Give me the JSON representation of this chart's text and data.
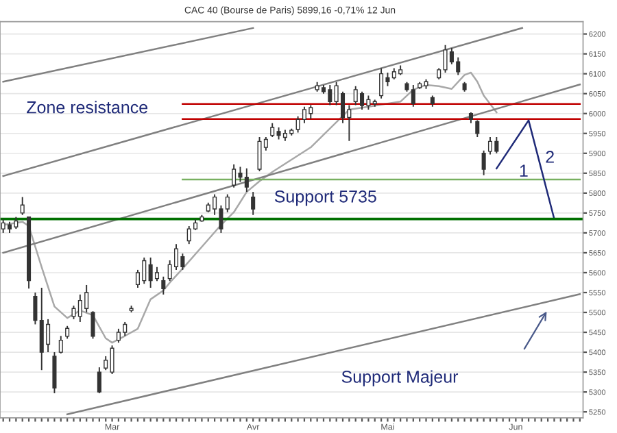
{
  "chart_data": {
    "type": "candlestick",
    "title": "CAC 40 (Bourse de Paris) 5899,16 -0,71% 12 Jun",
    "categories": [
      null,
      null,
      null,
      null,
      null,
      null,
      null,
      null,
      null,
      null,
      null,
      null,
      null,
      null,
      null,
      null,
      null,
      "Mar",
      null,
      null,
      null,
      null,
      null,
      null,
      null,
      null,
      null,
      null,
      null,
      null,
      null,
      null,
      null,
      null,
      null,
      null,
      null,
      null,
      null,
      "Avr",
      null,
      null,
      null,
      null,
      null,
      null,
      null,
      null,
      null,
      null,
      null,
      null,
      null,
      null,
      null,
      null,
      null,
      null,
      null,
      null,
      "Mai",
      null,
      null,
      null,
      null,
      null,
      null,
      null,
      null,
      null,
      null,
      null,
      null,
      null,
      null,
      null,
      null,
      null,
      null,
      null,
      "Jun",
      null,
      null,
      null,
      null,
      null,
      null,
      null,
      null,
      null,
      null
    ],
    "ohlc": [
      [
        5710,
        5735,
        5700,
        5725
      ],
      [
        5720,
        5728,
        5700,
        5710
      ],
      [
        5715,
        5740,
        5710,
        5730
      ],
      [
        5750,
        5790,
        5745,
        5770
      ],
      [
        5740,
        5740,
        5560,
        5580
      ],
      [
        5540,
        5550,
        5470,
        5480
      ],
      [
        5480,
        5562,
        5355,
        5400
      ],
      [
        5420,
        5483,
        5400,
        5470
      ],
      [
        5390,
        5400,
        5297,
        5310
      ],
      [
        5400,
        5441,
        5397,
        5430
      ],
      [
        5440,
        5466,
        5434,
        5460
      ],
      [
        5490,
        5517,
        5483,
        5510
      ],
      [
        5490,
        5545,
        5476,
        5530
      ],
      [
        5510,
        5569,
        5500,
        5550
      ],
      [
        5500,
        5503,
        5434,
        5440
      ],
      [
        5350,
        5362,
        5297,
        5300
      ],
      [
        5360,
        5390,
        5355,
        5380
      ],
      [
        5350,
        5417,
        5345,
        5410
      ],
      [
        5430,
        5459,
        5424,
        5450
      ],
      [
        5450,
        5476,
        5441,
        5470
      ],
      [
        5505,
        5517,
        5500,
        5510
      ],
      [
        5570,
        5607,
        5562,
        5600
      ],
      [
        5580,
        5638,
        5572,
        5630
      ],
      [
        5620,
        5638,
        5562,
        5580
      ],
      [
        5585,
        5614,
        5579,
        5600
      ],
      [
        5580,
        5590,
        5545,
        5560
      ],
      [
        5585,
        5631,
        5579,
        5620
      ],
      [
        5615,
        5672,
        5607,
        5660
      ],
      [
        5640,
        5648,
        5607,
        5615
      ],
      [
        5680,
        5717,
        5672,
        5710
      ],
      [
        5710,
        5734,
        5707,
        5725
      ],
      [
        5730,
        5745,
        5728,
        5740
      ],
      [
        5755,
        5776,
        5752,
        5770
      ],
      [
        5760,
        5797,
        5745,
        5790
      ],
      [
        5760,
        5769,
        5700,
        5710
      ],
      [
        5760,
        5797,
        5752,
        5790
      ],
      [
        5820,
        5872,
        5814,
        5860
      ],
      [
        5850,
        5866,
        5828,
        5840
      ],
      [
        5840,
        5862,
        5803,
        5815
      ],
      [
        5790,
        5803,
        5745,
        5760
      ],
      [
        5860,
        5941,
        5855,
        5930
      ],
      [
        5915,
        5941,
        5907,
        5935
      ],
      [
        5945,
        5976,
        5941,
        5965
      ],
      [
        5955,
        5965,
        5935,
        5945
      ],
      [
        5940,
        5959,
        5931,
        5950
      ],
      [
        5950,
        5962,
        5945,
        5958
      ],
      [
        5960,
        5993,
        5952,
        5985
      ],
      [
        5985,
        6017,
        5976,
        6010
      ],
      [
        6000,
        6021,
        5986,
        6015
      ],
      [
        6060,
        6079,
        6055,
        6070
      ],
      [
        6065,
        6072,
        6050,
        6055
      ],
      [
        6060,
        6072,
        6021,
        6030
      ],
      [
        6030,
        6079,
        6021,
        6070
      ],
      [
        6050,
        6055,
        5976,
        5990
      ],
      [
        5990,
        6021,
        5931,
        6010
      ],
      [
        6030,
        6069,
        6021,
        6060
      ],
      [
        6050,
        6055,
        6010,
        6020
      ],
      [
        6020,
        6045,
        6010,
        6035
      ],
      [
        6025,
        6035,
        6017,
        6030
      ],
      [
        6045,
        6114,
        6038,
        6100
      ],
      [
        6090,
        6103,
        6069,
        6080
      ],
      [
        6090,
        6114,
        6086,
        6105
      ],
      [
        6100,
        6121,
        6097,
        6110
      ],
      [
        6075,
        6079,
        6055,
        6060
      ],
      [
        6060,
        6072,
        6017,
        6025
      ],
      [
        6065,
        6079,
        6062,
        6075
      ],
      [
        6070,
        6086,
        6062,
        6080
      ],
      [
        6040,
        6045,
        6017,
        6025
      ],
      [
        6090,
        6114,
        6086,
        6110
      ],
      [
        6110,
        6172,
        6103,
        6160
      ],
      [
        6155,
        6165,
        6124,
        6130
      ],
      [
        6130,
        6141,
        6097,
        6105
      ],
      [
        6075,
        6079,
        6055,
        6060
      ],
      [
        6000,
        6003,
        5976,
        5985
      ],
      [
        5980,
        5983,
        5941,
        5950
      ],
      [
        5900,
        5907,
        5845,
        5860
      ],
      [
        5905,
        5941,
        5897,
        5930
      ],
      [
        5930,
        5941,
        5900,
        5905
      ],
      null,
      null,
      null,
      null,
      null,
      null,
      null,
      null,
      null,
      null,
      null,
      null,
      null
    ],
    "color": "#333333",
    "series": [
      {
        "type": "line",
        "color": "#a8a8a8",
        "values": [
          5720,
          null,
          null,
          5728,
          5717,
          null,
          5614,
          null,
          5515,
          null,
          5486,
          null,
          5505,
          null,
          5493,
          null,
          5435,
          5424,
          null,
          5441,
          null,
          5459,
          null,
          5533,
          null,
          5555,
          5575,
          null,
          5610,
          null,
          null,
          5665,
          null,
          null,
          5720,
          null,
          5752,
          null,
          5803,
          null,
          5830,
          null,
          5853,
          null,
          null,
          null,
          null,
          null,
          5915,
          null,
          null,
          null,
          null,
          null,
          6010,
          null,
          null,
          6017,
          null,
          null,
          null,
          null,
          6030,
          null,
          6060,
          null,
          6072,
          null,
          6069,
          null,
          6062,
          null,
          6097,
          6103,
          6080,
          6045,
          null,
          6003,
          null,
          null,
          null,
          null,
          null,
          null,
          null,
          null,
          null,
          null,
          null,
          null,
          null
        ]
      },
      {
        "type": "line",
        "color": "#808080",
        "values": [
          6080,
          null,
          null,
          null,
          null,
          null,
          null,
          null,
          null,
          null,
          null,
          null,
          null,
          null,
          null,
          null,
          null,
          null,
          null,
          null,
          null,
          null,
          null,
          null,
          null,
          null,
          null,
          null,
          null,
          null,
          null,
          null,
          null,
          null,
          null,
          null,
          null,
          null,
          null,
          6215,
          null,
          null,
          null,
          null,
          null,
          null,
          null,
          null,
          null,
          null,
          null,
          null,
          null,
          null,
          null,
          null,
          null,
          null,
          null,
          null,
          null,
          null,
          null,
          null,
          null,
          null,
          null,
          null,
          null,
          null,
          null,
          null,
          null,
          null,
          null,
          null,
          null,
          null,
          null,
          null,
          null,
          null,
          null,
          null,
          null,
          null,
          null,
          null,
          null,
          null,
          null
        ]
      },
      {
        "type": "line",
        "color": "#808080",
        "values": [
          5843,
          null,
          null,
          null,
          null,
          null,
          null,
          null,
          null,
          null,
          null,
          null,
          null,
          null,
          null,
          null,
          null,
          null,
          null,
          null,
          null,
          null,
          null,
          null,
          null,
          null,
          null,
          null,
          null,
          null,
          null,
          null,
          null,
          null,
          null,
          null,
          null,
          null,
          null,
          null,
          null,
          null,
          null,
          null,
          null,
          null,
          null,
          null,
          null,
          null,
          null,
          null,
          null,
          null,
          null,
          null,
          null,
          null,
          null,
          null,
          null,
          null,
          null,
          null,
          null,
          null,
          null,
          null,
          null,
          null,
          null,
          null,
          null,
          null,
          null,
          null,
          null,
          null,
          null,
          null,
          null,
          6215,
          null,
          null,
          null,
          null,
          null,
          null,
          null,
          null,
          null
        ]
      },
      {
        "type": "line",
        "color": "#808080",
        "values": [
          5650,
          null,
          null,
          null,
          null,
          null,
          null,
          null,
          null,
          null,
          null,
          null,
          null,
          null,
          null,
          null,
          null,
          null,
          null,
          null,
          null,
          null,
          null,
          null,
          null,
          null,
          null,
          null,
          null,
          null,
          null,
          null,
          null,
          null,
          null,
          null,
          null,
          null,
          null,
          null,
          null,
          null,
          null,
          null,
          null,
          null,
          null,
          null,
          null,
          null,
          null,
          null,
          null,
          null,
          null,
          null,
          null,
          null,
          null,
          null,
          null,
          null,
          null,
          null,
          null,
          null,
          null,
          null,
          null,
          null,
          null,
          null,
          null,
          null,
          null,
          null,
          null,
          null,
          null,
          null,
          null,
          null,
          null,
          null,
          null,
          null,
          null,
          null,
          null,
          null,
          6073
        ]
      },
      {
        "type": "line",
        "color": "#808080",
        "values": [
          null,
          null,
          null,
          null,
          null,
          null,
          null,
          null,
          null,
          null,
          5244,
          null,
          null,
          null,
          null,
          null,
          null,
          null,
          null,
          null,
          null,
          null,
          null,
          null,
          null,
          null,
          null,
          null,
          null,
          null,
          null,
          null,
          null,
          null,
          null,
          null,
          null,
          null,
          null,
          null,
          null,
          null,
          null,
          null,
          null,
          null,
          null,
          null,
          null,
          null,
          null,
          null,
          null,
          null,
          null,
          null,
          null,
          null,
          null,
          null,
          null,
          null,
          null,
          null,
          null,
          null,
          null,
          null,
          null,
          null,
          null,
          null,
          null,
          null,
          null,
          null,
          null,
          null,
          null,
          null,
          null,
          null,
          null,
          null,
          null,
          null,
          null,
          null,
          null,
          null,
          5546
        ]
      },
      {
        "type": "line",
        "color": "#c00000",
        "values": [
          null,
          null,
          null,
          null,
          null,
          null,
          null,
          null,
          null,
          null,
          null,
          null,
          null,
          null,
          null,
          null,
          null,
          null,
          null,
          null,
          null,
          null,
          null,
          null,
          null,
          null,
          null,
          null,
          6024,
          null,
          null,
          null,
          null,
          null,
          null,
          null,
          null,
          null,
          null,
          null,
          null,
          null,
          null,
          null,
          null,
          null,
          null,
          null,
          null,
          null,
          null,
          null,
          null,
          null,
          null,
          null,
          null,
          null,
          null,
          null,
          null,
          null,
          null,
          null,
          null,
          null,
          null,
          null,
          null,
          null,
          null,
          null,
          null,
          null,
          null,
          null,
          null,
          null,
          null,
          null,
          null,
          null,
          null,
          null,
          null,
          null,
          null,
          null,
          null,
          null,
          6024
        ]
      },
      {
        "type": "line",
        "color": "#c00000",
        "values": [
          null,
          null,
          null,
          null,
          null,
          null,
          null,
          null,
          null,
          null,
          null,
          null,
          null,
          null,
          null,
          null,
          null,
          null,
          null,
          null,
          null,
          null,
          null,
          null,
          null,
          null,
          null,
          null,
          5986,
          null,
          null,
          null,
          null,
          null,
          null,
          null,
          null,
          null,
          null,
          null,
          null,
          null,
          null,
          null,
          null,
          null,
          null,
          null,
          null,
          null,
          null,
          null,
          null,
          null,
          null,
          null,
          null,
          null,
          null,
          null,
          null,
          null,
          null,
          null,
          null,
          null,
          null,
          null,
          null,
          null,
          null,
          null,
          null,
          null,
          null,
          null,
          null,
          null,
          null,
          null,
          null,
          null,
          null,
          null,
          null,
          null,
          null,
          null,
          null,
          null,
          5986
        ]
      },
      {
        "type": "line",
        "color": "#78b060",
        "values": [
          null,
          null,
          null,
          null,
          null,
          null,
          null,
          null,
          null,
          null,
          null,
          null,
          null,
          null,
          null,
          null,
          null,
          null,
          null,
          null,
          null,
          null,
          null,
          null,
          null,
          null,
          null,
          null,
          5834,
          null,
          null,
          null,
          null,
          null,
          null,
          null,
          null,
          null,
          null,
          null,
          null,
          null,
          null,
          null,
          null,
          null,
          null,
          null,
          null,
          null,
          null,
          null,
          null,
          null,
          null,
          null,
          null,
          null,
          null,
          null,
          null,
          null,
          null,
          null,
          null,
          null,
          null,
          null,
          null,
          null,
          null,
          null,
          null,
          null,
          null,
          null,
          null,
          null,
          null,
          null,
          null,
          null,
          null,
          null,
          null,
          null,
          null,
          null,
          null,
          null,
          5834
        ]
      },
      {
        "type": "line",
        "color": "#1f2a78",
        "values": [
          null,
          null,
          null,
          null,
          null,
          null,
          null,
          null,
          null,
          null,
          null,
          null,
          null,
          null,
          null,
          null,
          null,
          null,
          null,
          null,
          null,
          null,
          null,
          null,
          null,
          null,
          null,
          null,
          null,
          null,
          null,
          null,
          null,
          null,
          null,
          null,
          null,
          null,
          null,
          null,
          null,
          null,
          null,
          null,
          null,
          null,
          null,
          null,
          null,
          null,
          null,
          null,
          null,
          null,
          null,
          null,
          null,
          null,
          null,
          null,
          null,
          null,
          null,
          null,
          null,
          null,
          null,
          null,
          null,
          null,
          null,
          null,
          null,
          null,
          null,
          null,
          null,
          5862,
          null,
          null,
          null,
          null,
          5983,
          null,
          null,
          null,
          5735,
          null,
          null,
          null,
          null
        ]
      }
    ],
    "ref_lines": [
      {
        "axis": "y",
        "value": 5735,
        "color": "#007000"
      }
    ],
    "annotations": [
      "Zone resistance",
      "Support 5735",
      "Support Majeur",
      "1",
      "2"
    ],
    "ylim": [
      5235,
      6231
    ],
    "yticks": [
      5250,
      5300,
      5350,
      5400,
      5450,
      5500,
      5550,
      5600,
      5650,
      5700,
      5750,
      5800,
      5850,
      5900,
      5950,
      6000,
      6050,
      6100,
      6150,
      6200
    ],
    "grid": "y"
  }
}
